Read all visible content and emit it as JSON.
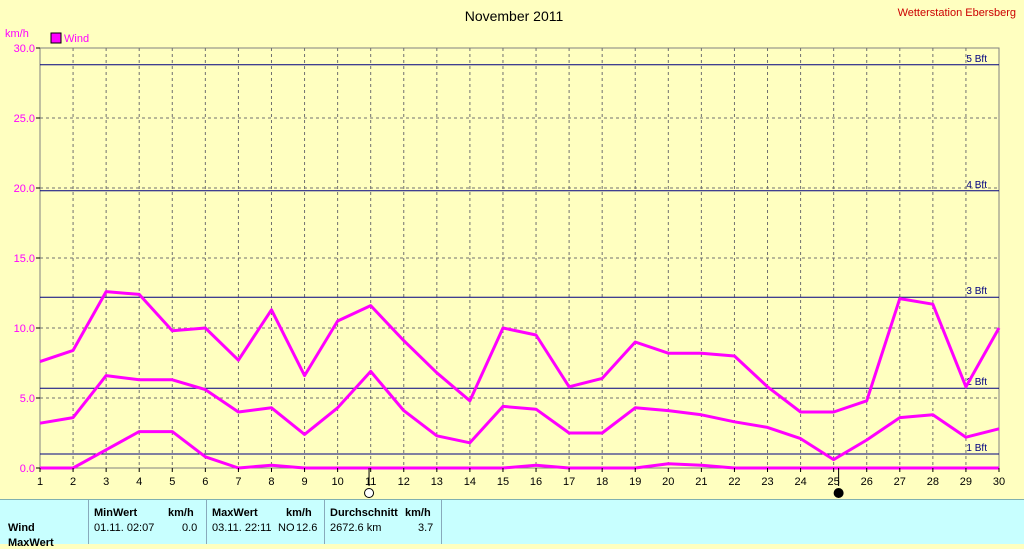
{
  "chart_data": {
    "type": "line",
    "title": "November 2011",
    "station": "Wetterstation Ebersberg",
    "ylabel": "km/h",
    "ylim": [
      0,
      30
    ],
    "yticks": [
      "0.0",
      "5.0",
      "10.0",
      "15.0",
      "20.0",
      "25.0",
      "30.0"
    ],
    "x": [
      1,
      2,
      3,
      4,
      5,
      6,
      7,
      8,
      9,
      10,
      11,
      12,
      13,
      14,
      15,
      16,
      17,
      18,
      19,
      20,
      21,
      22,
      23,
      24,
      25,
      26,
      27,
      28,
      29,
      30
    ],
    "xticks": [
      "1",
      "2",
      "3",
      "4",
      "5",
      "6",
      "7",
      "8",
      "9",
      "10",
      "11",
      "12",
      "13",
      "14",
      "15",
      "16",
      "17",
      "18",
      "19",
      "20",
      "21",
      "22",
      "23",
      "24",
      "25",
      "26",
      "27",
      "28",
      "29",
      "30"
    ],
    "legend": [
      "Wind"
    ],
    "grid": true,
    "colors": {
      "series": "#FF00FF",
      "bft": "#000080",
      "grid": "#707070",
      "background": "#FFFFC0",
      "title_station": "#CC0000"
    },
    "series": [
      {
        "name": "Wind",
        "role": "max",
        "values": [
          7.6,
          8.4,
          12.6,
          12.4,
          9.8,
          10.0,
          7.7,
          11.3,
          6.6,
          10.5,
          11.6,
          9.1,
          6.8,
          4.8,
          10.0,
          9.5,
          5.8,
          6.4,
          9.0,
          8.2,
          8.2,
          8.0,
          5.8,
          4.0,
          4.0,
          4.8,
          12.1,
          11.7,
          5.8,
          10.0
        ]
      },
      {
        "name": "Wind",
        "role": "avg",
        "values": [
          3.2,
          3.6,
          6.6,
          6.3,
          6.3,
          5.6,
          4.0,
          4.3,
          2.4,
          4.3,
          6.9,
          4.1,
          2.3,
          1.8,
          4.4,
          4.2,
          2.5,
          2.5,
          4.3,
          4.1,
          3.8,
          3.3,
          2.9,
          2.1,
          0.6,
          2.0,
          3.6,
          3.8,
          2.2,
          2.8
        ]
      },
      {
        "name": "Wind",
        "role": "min",
        "values": [
          0.0,
          0.0,
          1.3,
          2.6,
          2.6,
          0.8,
          0.0,
          0.2,
          0.0,
          0.0,
          0.0,
          0.0,
          0.0,
          0.0,
          0.0,
          0.2,
          0.0,
          0.0,
          0.0,
          0.3,
          0.2,
          0.0,
          0.0,
          0.0,
          0.0,
          0.0,
          0.0,
          0.0,
          0.0,
          0.0
        ]
      }
    ],
    "reference_lines": [
      {
        "label": "1 Bft",
        "value": 1.0
      },
      {
        "label": "2 Bft",
        "value": 5.7
      },
      {
        "label": "3 Bft",
        "value": 12.2
      },
      {
        "label": "4 Bft",
        "value": 19.8
      },
      {
        "label": "5 Bft",
        "value": 28.8
      }
    ],
    "moon_markers": [
      {
        "day": 10.95,
        "phase": "full-moon"
      },
      {
        "day": 25.15,
        "phase": "new-moon"
      }
    ]
  },
  "stats": {
    "row_label": "Wind",
    "row_label_2": "MaxWert",
    "min_header": "MinWert",
    "max_header": "MaxWert",
    "avg_header": "Durchschnitt",
    "unit": "km/h",
    "min_date": "01.11.  02:07",
    "min_value": "0.0",
    "max_date": "03.11.  22:11",
    "max_dir": "NO",
    "max_value": "12.6",
    "avg_distance": "2672.6 km",
    "avg_value": "3.7"
  }
}
